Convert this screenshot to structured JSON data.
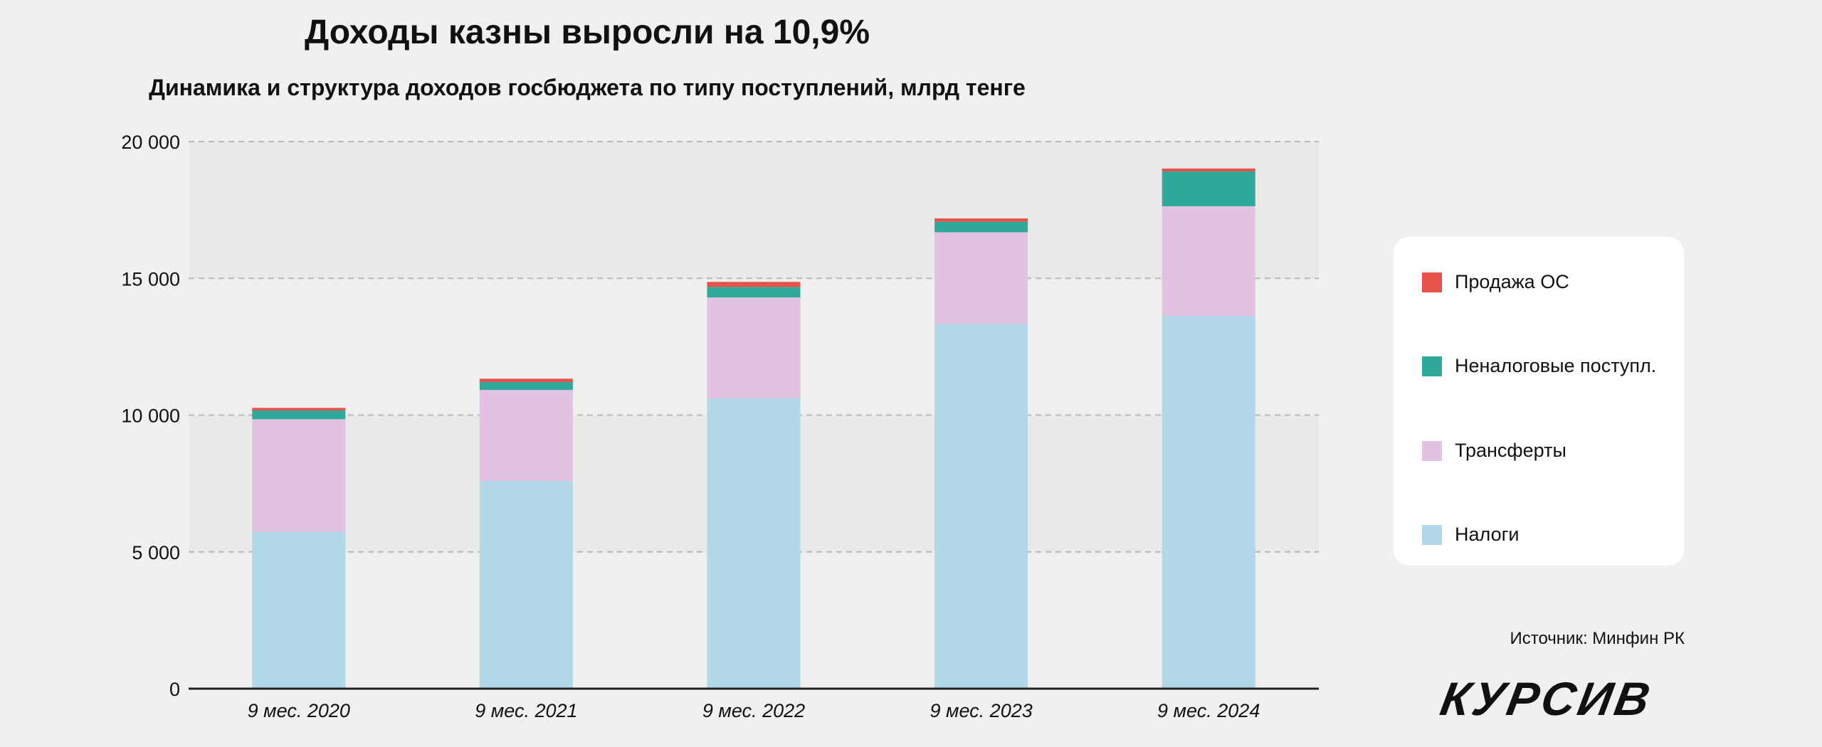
{
  "title": "Доходы казны выросли на 10,9%",
  "subtitle": "Динамика и структура доходов госбюджета по типу поступлений, млрд тенге",
  "source": "Источник: Минфин РК",
  "logo": "КУРСИВ",
  "chart_data": {
    "type": "bar",
    "stacked": true,
    "title": "Доходы казны выросли на 10,9%",
    "categories": [
      "9 мес. 2020",
      "9 мес. 2021",
      "9 мес. 2022",
      "9 мес. 2023",
      "9 мес. 2024"
    ],
    "ylim": [
      0,
      20000
    ],
    "yticks": [
      0,
      5000,
      10000,
      15000,
      20000
    ],
    "ytick_labels": [
      "0",
      "5 000",
      "10 000",
      "15 000",
      "20 000"
    ],
    "grid": true,
    "legend_position": "right",
    "series": [
      {
        "name": "Налоги",
        "color": "#b2d8e8",
        "values": [
          5730,
          7590,
          10610,
          13330,
          13630
        ]
      },
      {
        "name": "Трансферты",
        "color": "#e1c2e0",
        "values": [
          4120,
          3330,
          3690,
          3355,
          4005
        ]
      },
      {
        "name": "Неналоговые поступл.",
        "color": "#30a99a",
        "values": [
          320,
          290,
          385,
          385,
          1275
        ]
      },
      {
        "name": "Продажа ОС",
        "color": "#e8504a",
        "values": [
          95,
          120,
          185,
          120,
          105
        ]
      }
    ]
  }
}
